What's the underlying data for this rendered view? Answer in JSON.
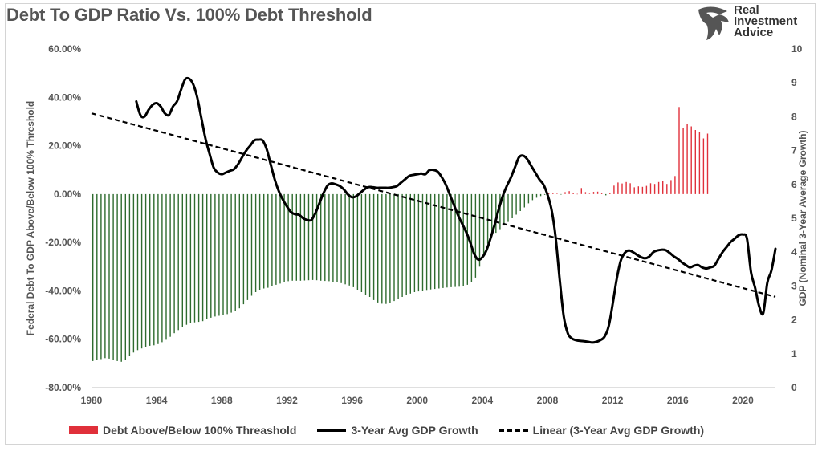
{
  "title": "Debt To GDP Ratio Vs. 100% Debt Threshold",
  "logo": {
    "lines": [
      "Real",
      "Investment",
      "Advice"
    ],
    "icon": "eagle-head-icon"
  },
  "colors": {
    "positive_bar": "#e0303a",
    "negative_bar": "#2e6b2e",
    "gdp_line": "#000000",
    "trend_line": "#000000",
    "text": "#555555"
  },
  "chart_data": {
    "type": "bar+line",
    "title": "Debt To GDP Ratio Vs. 100% Debt Threshold",
    "ylabel_left": "Federal Debt To GDP Above/Below 100%  Threshold",
    "ylabel_right": "GDP (Nominal 3-Year Average Growth)",
    "xlabel": "",
    "x_ticks": [
      "1980",
      "1984",
      "1988",
      "1992",
      "1996",
      "2000",
      "2004",
      "2008",
      "2012",
      "2016",
      "2020"
    ],
    "x_range": [
      1980,
      2022
    ],
    "y_left_ticks": [
      "60.00%",
      "40.00%",
      "20.00%",
      "0.00%",
      "-20.00%",
      "-40.00%",
      "-60.00%",
      "-80.00%"
    ],
    "y_left_range": [
      -80,
      60
    ],
    "y_right_ticks": [
      "10",
      "9",
      "8",
      "7",
      "6",
      "5",
      "4",
      "3",
      "2",
      "1",
      "0"
    ],
    "y_right_range": [
      0,
      10
    ],
    "grid": false,
    "legend_position": "bottom",
    "legend": [
      "Debt Above/Below 100%  Threashold",
      "3-Year Avg GDP Growth",
      "Linear (3-Year Avg GDP Growth)"
    ],
    "debt_series": {
      "name": "Debt Above/Below 100%  Threashold",
      "frequency": "quarterly",
      "start": 1980.0,
      "values": [
        -69,
        -68.5,
        -68.2,
        -67.8,
        -68,
        -68.4,
        -69,
        -69.3,
        -68.5,
        -67,
        -65.5,
        -64.5,
        -63.8,
        -63.2,
        -62.7,
        -62.5,
        -62,
        -61.2,
        -60.2,
        -59,
        -57.5,
        -56.2,
        -55,
        -54,
        -53.3,
        -53,
        -52.8,
        -52.5,
        -51.6,
        -51.1,
        -50.6,
        -50.3,
        -50,
        -49.6,
        -49,
        -48.3,
        -47.2,
        -45.5,
        -43.8,
        -42,
        -40.5,
        -39.5,
        -39,
        -38.7,
        -38,
        -37.5,
        -37,
        -36.5,
        -36,
        -35.8,
        -35.8,
        -35.8,
        -35.7,
        -35.6,
        -35.5,
        -35.6,
        -35.8,
        -35.9,
        -36,
        -36.2,
        -36.5,
        -36.8,
        -37.3,
        -37.8,
        -38.5,
        -39.5,
        -40.5,
        -41.5,
        -42.5,
        -43.8,
        -44.8,
        -45.3,
        -45.4,
        -45,
        -44.2,
        -43.3,
        -42.5,
        -41.8,
        -41.1,
        -40.5,
        -40.2,
        -39.9,
        -39.6,
        -39.4,
        -39.2,
        -39,
        -38.8,
        -38.6,
        -38.5,
        -38.4,
        -38.3,
        -38.2,
        -37.5,
        -36.5,
        -34.5,
        -30,
        -25,
        -20.5,
        -17.5,
        -16,
        -14.5,
        -13,
        -11.5,
        -10,
        -8.5,
        -7,
        -5.5,
        -3.8,
        -2.5,
        -1.5,
        -0.8,
        -0.3,
        0.3,
        0.6,
        0.2,
        -0.2,
        0.8,
        1.2,
        0.5,
        0.1,
        2.5,
        0.8,
        0.2,
        0.9,
        1,
        0.3,
        -0.5,
        0.5,
        3.5,
        4.8,
        4.4,
        5,
        4.5,
        2.8,
        3.2,
        3,
        3.4,
        4.5,
        4.2,
        5,
        5.5,
        4.2,
        5.8,
        7.5,
        36,
        27.5,
        29,
        28,
        26.5,
        25.5,
        23,
        25
      ]
    },
    "gdp_growth": {
      "name": "3-Year Avg GDP Growth",
      "points": [
        [
          1982.75,
          8.45
        ],
        [
          1983.0,
          8.05
        ],
        [
          1983.25,
          8.0
        ],
        [
          1983.5,
          8.2
        ],
        [
          1983.75,
          8.35
        ],
        [
          1984.0,
          8.4
        ],
        [
          1984.25,
          8.3
        ],
        [
          1984.5,
          8.1
        ],
        [
          1984.75,
          8.05
        ],
        [
          1985.0,
          8.3
        ],
        [
          1985.25,
          8.45
        ],
        [
          1985.5,
          8.8
        ],
        [
          1985.75,
          9.1
        ],
        [
          1986.0,
          9.12
        ],
        [
          1986.25,
          8.95
        ],
        [
          1986.5,
          8.55
        ],
        [
          1986.75,
          7.95
        ],
        [
          1987.0,
          7.35
        ],
        [
          1987.25,
          6.9
        ],
        [
          1987.5,
          6.5
        ],
        [
          1987.75,
          6.35
        ],
        [
          1988.0,
          6.3
        ],
        [
          1988.25,
          6.35
        ],
        [
          1988.5,
          6.4
        ],
        [
          1988.75,
          6.45
        ],
        [
          1989.0,
          6.6
        ],
        [
          1989.25,
          6.8
        ],
        [
          1989.5,
          7.0
        ],
        [
          1989.75,
          7.15
        ],
        [
          1990.0,
          7.3
        ],
        [
          1990.25,
          7.32
        ],
        [
          1990.5,
          7.3
        ],
        [
          1990.75,
          7.05
        ],
        [
          1991.0,
          6.6
        ],
        [
          1991.25,
          6.15
        ],
        [
          1991.5,
          5.8
        ],
        [
          1991.75,
          5.55
        ],
        [
          1992.0,
          5.35
        ],
        [
          1992.25,
          5.18
        ],
        [
          1992.5,
          5.12
        ],
        [
          1992.75,
          5.1
        ],
        [
          1993.0,
          5.0
        ],
        [
          1993.25,
          4.95
        ],
        [
          1993.5,
          4.95
        ],
        [
          1993.75,
          5.15
        ],
        [
          1994.0,
          5.45
        ],
        [
          1994.25,
          5.75
        ],
        [
          1994.5,
          5.97
        ],
        [
          1994.75,
          6.03
        ],
        [
          1995.0,
          6.0
        ],
        [
          1995.25,
          5.95
        ],
        [
          1995.5,
          5.85
        ],
        [
          1995.75,
          5.7
        ],
        [
          1996.0,
          5.62
        ],
        [
          1996.25,
          5.65
        ],
        [
          1996.5,
          5.75
        ],
        [
          1996.75,
          5.85
        ],
        [
          1997.0,
          5.92
        ],
        [
          1997.25,
          5.92
        ],
        [
          1997.5,
          5.9
        ],
        [
          1997.75,
          5.9
        ],
        [
          1998.0,
          5.9
        ],
        [
          1998.25,
          5.9
        ],
        [
          1998.5,
          5.92
        ],
        [
          1998.75,
          5.95
        ],
        [
          1999.0,
          6.05
        ],
        [
          1999.25,
          6.15
        ],
        [
          1999.5,
          6.25
        ],
        [
          1999.75,
          6.28
        ],
        [
          2000.0,
          6.3
        ],
        [
          2000.25,
          6.32
        ],
        [
          2000.5,
          6.3
        ],
        [
          2000.75,
          6.42
        ],
        [
          2001.0,
          6.43
        ],
        [
          2001.25,
          6.38
        ],
        [
          2001.5,
          6.22
        ],
        [
          2001.75,
          6.0
        ],
        [
          2002.0,
          5.7
        ],
        [
          2002.25,
          5.4
        ],
        [
          2002.5,
          5.1
        ],
        [
          2002.75,
          4.85
        ],
        [
          2003.0,
          4.6
        ],
        [
          2003.25,
          4.3
        ],
        [
          2003.5,
          3.95
        ],
        [
          2003.75,
          3.78
        ],
        [
          2004.0,
          3.85
        ],
        [
          2004.25,
          4.05
        ],
        [
          2004.5,
          4.4
        ],
        [
          2004.75,
          4.8
        ],
        [
          2005.0,
          5.25
        ],
        [
          2005.25,
          5.65
        ],
        [
          2005.5,
          5.95
        ],
        [
          2005.75,
          6.2
        ],
        [
          2006.0,
          6.5
        ],
        [
          2006.25,
          6.8
        ],
        [
          2006.5,
          6.85
        ],
        [
          2006.75,
          6.75
        ],
        [
          2007.0,
          6.55
        ],
        [
          2007.25,
          6.35
        ],
        [
          2007.5,
          6.15
        ],
        [
          2007.75,
          6.0
        ],
        [
          2008.0,
          5.7
        ],
        [
          2008.25,
          5.25
        ],
        [
          2008.5,
          4.45
        ],
        [
          2008.75,
          3.2
        ],
        [
          2009.0,
          2.1
        ],
        [
          2009.25,
          1.6
        ],
        [
          2009.5,
          1.45
        ],
        [
          2009.75,
          1.4
        ],
        [
          2010.0,
          1.38
        ],
        [
          2010.25,
          1.37
        ],
        [
          2010.5,
          1.35
        ],
        [
          2010.75,
          1.33
        ],
        [
          2011.0,
          1.35
        ],
        [
          2011.25,
          1.4
        ],
        [
          2011.5,
          1.5
        ],
        [
          2011.75,
          1.8
        ],
        [
          2012.0,
          2.45
        ],
        [
          2012.25,
          3.2
        ],
        [
          2012.5,
          3.75
        ],
        [
          2012.75,
          3.98
        ],
        [
          2013.0,
          4.05
        ],
        [
          2013.25,
          4.0
        ],
        [
          2013.5,
          3.92
        ],
        [
          2013.75,
          3.85
        ],
        [
          2014.0,
          3.82
        ],
        [
          2014.25,
          3.87
        ],
        [
          2014.5,
          4.0
        ],
        [
          2014.75,
          4.05
        ],
        [
          2015.0,
          4.07
        ],
        [
          2015.25,
          4.06
        ],
        [
          2015.5,
          3.98
        ],
        [
          2015.75,
          3.88
        ],
        [
          2016.0,
          3.8
        ],
        [
          2016.25,
          3.7
        ],
        [
          2016.5,
          3.62
        ],
        [
          2016.75,
          3.55
        ],
        [
          2017.0,
          3.6
        ],
        [
          2017.25,
          3.62
        ],
        [
          2017.5,
          3.55
        ],
        [
          2017.75,
          3.52
        ],
        [
          2018.0,
          3.55
        ],
        [
          2018.25,
          3.6
        ],
        [
          2018.5,
          3.8
        ],
        [
          2018.75,
          4.0
        ],
        [
          2019.0,
          4.15
        ],
        [
          2019.25,
          4.3
        ],
        [
          2019.5,
          4.4
        ],
        [
          2019.75,
          4.5
        ],
        [
          2020.0,
          4.52
        ],
        [
          2020.25,
          4.4
        ],
        [
          2020.5,
          3.4
        ],
        [
          2020.75,
          2.95
        ],
        [
          2021.0,
          2.4
        ],
        [
          2021.25,
          2.2
        ],
        [
          2021.5,
          3.1
        ],
        [
          2021.75,
          3.45
        ],
        [
          2022.0,
          4.1
        ]
      ]
    },
    "trend": {
      "name": "Linear (3-Year Avg GDP Growth)",
      "points": [
        [
          1980,
          8.1
        ],
        [
          2022,
          2.68
        ]
      ]
    }
  }
}
